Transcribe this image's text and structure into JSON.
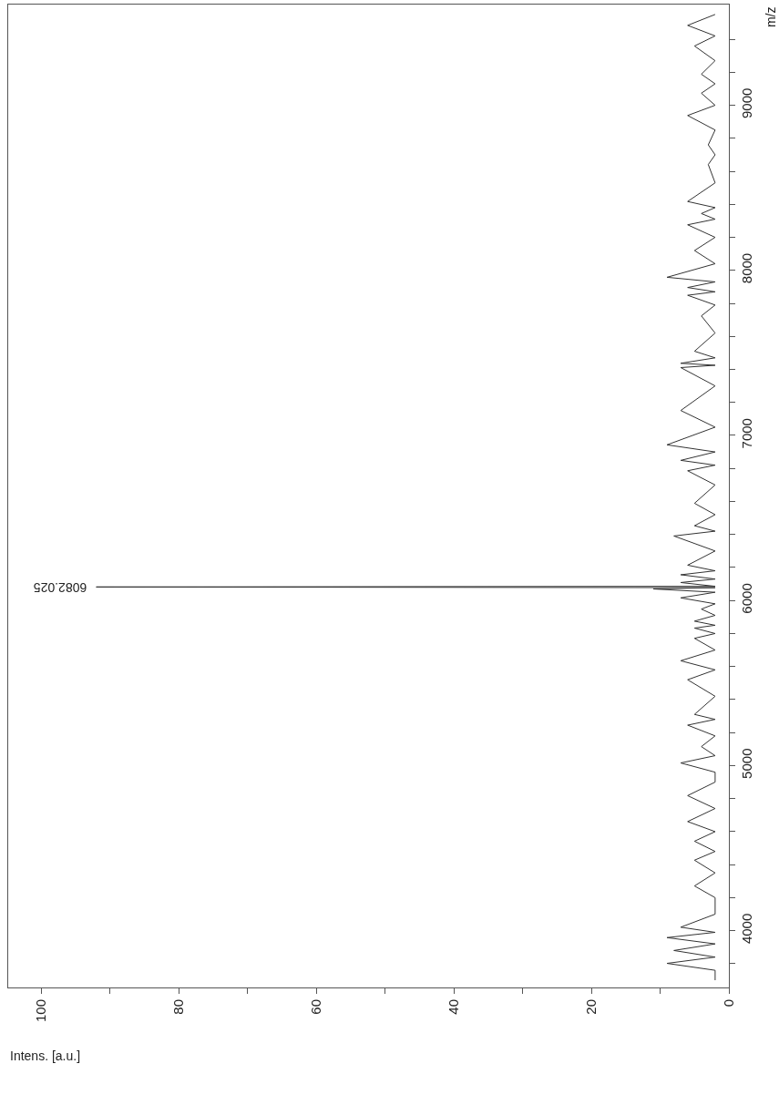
{
  "chart_data": {
    "type": "line",
    "orientation": "horizontal",
    "xlabel": "Intens. [a.u.]",
    "ylabel": "m/z",
    "annotations": [
      "6082.025"
    ],
    "xlim": [
      104.8,
      0
    ],
    "xticks": [
      100,
      {
        "value": 90,
        "label": null
      },
      80,
      {
        "value": 70,
        "label": null
      },
      60,
      {
        "value": 50,
        "label": null
      },
      40,
      {
        "value": 30,
        "label": null
      },
      20,
      {
        "value": 10,
        "label": null
      },
      0
    ],
    "ylim": [
      3656,
      9610
    ],
    "yticks": [
      {
        "value": 3800,
        "label": null
      },
      4000,
      {
        "value": 4200,
        "label": null
      },
      {
        "value": 4400,
        "label": null
      },
      {
        "value": 4600,
        "label": null
      },
      {
        "value": 4800,
        "label": null
      },
      5000,
      {
        "value": 5200,
        "label": null
      },
      {
        "value": 5400,
        "label": null
      },
      {
        "value": 5600,
        "label": null
      },
      {
        "value": 5800,
        "label": null
      },
      6000,
      {
        "value": 6200,
        "label": null
      },
      {
        "value": 6400,
        "label": null
      },
      {
        "value": 6600,
        "label": null
      },
      {
        "value": 6800,
        "label": null
      },
      7000,
      {
        "value": 7200,
        "label": null
      },
      {
        "value": 7400,
        "label": null
      },
      {
        "value": 7600,
        "label": null
      },
      {
        "value": 7800,
        "label": null
      },
      8000,
      {
        "value": 8200,
        "label": null
      },
      {
        "value": 8400,
        "label": null
      },
      {
        "value": 8600,
        "label": null
      },
      {
        "value": 8800,
        "label": null
      },
      9000,
      {
        "value": 9200,
        "label": null
      },
      {
        "value": 9400,
        "label": null
      }
    ],
    "marker": "none",
    "line_style": "solid",
    "series": [
      {
        "color": "#333333",
        "x": [
          3700,
          3760,
          3802,
          3840,
          3880,
          3920,
          3958,
          3990,
          4021,
          4100,
          4200,
          4271,
          4350,
          4427,
          4480,
          4542,
          4600,
          4661,
          4740,
          4818,
          4900,
          4960,
          5016,
          5060,
          5115,
          5180,
          5245,
          5280,
          5310,
          5420,
          5520,
          5580,
          5635,
          5700,
          5771,
          5800,
          5833,
          5850,
          5875,
          5910,
          5948,
          5980,
          6016,
          6050,
          6070,
          6078,
          6082.025,
          6086,
          6109,
          6130,
          6156,
          6180,
          6214,
          6300,
          6391,
          6420,
          6453,
          6520,
          6589,
          6700,
          6786,
          6820,
          6849,
          6900,
          6943,
          7050,
          7151,
          7300,
          7411,
          7425,
          7437,
          7470,
          7510,
          7620,
          7724,
          7790,
          7849,
          7870,
          7896,
          7930,
          7958,
          8040,
          8120,
          8200,
          8276,
          8310,
          8344,
          8380,
          8417,
          8530,
          8641,
          8700,
          8760,
          8850,
          8938,
          9000,
          9073,
          9130,
          9188,
          9270,
          9359,
          9420,
          9484,
          9550
        ],
        "values": [
          2,
          2,
          9,
          2,
          8,
          2,
          9,
          2,
          7,
          2,
          2,
          5,
          2,
          5,
          2,
          5,
          2,
          6,
          2,
          6,
          2,
          2,
          7,
          2,
          4,
          2,
          6,
          2,
          5,
          2,
          6,
          2,
          7,
          2,
          5,
          2,
          5,
          2,
          5,
          2,
          4,
          2,
          7,
          2,
          11,
          2,
          92,
          2,
          7,
          2,
          7,
          2,
          6,
          2,
          8,
          2,
          5,
          2,
          5,
          2,
          6,
          2,
          7,
          2,
          9,
          2,
          7,
          2,
          7,
          2,
          7,
          2,
          5,
          2,
          4,
          2,
          6,
          2,
          6,
          2,
          9,
          2,
          5,
          2,
          6,
          2,
          4,
          2,
          6,
          2,
          3,
          2,
          3,
          2,
          6,
          2,
          4,
          2,
          4,
          2,
          5,
          2,
          6,
          2
        ]
      }
    ]
  }
}
